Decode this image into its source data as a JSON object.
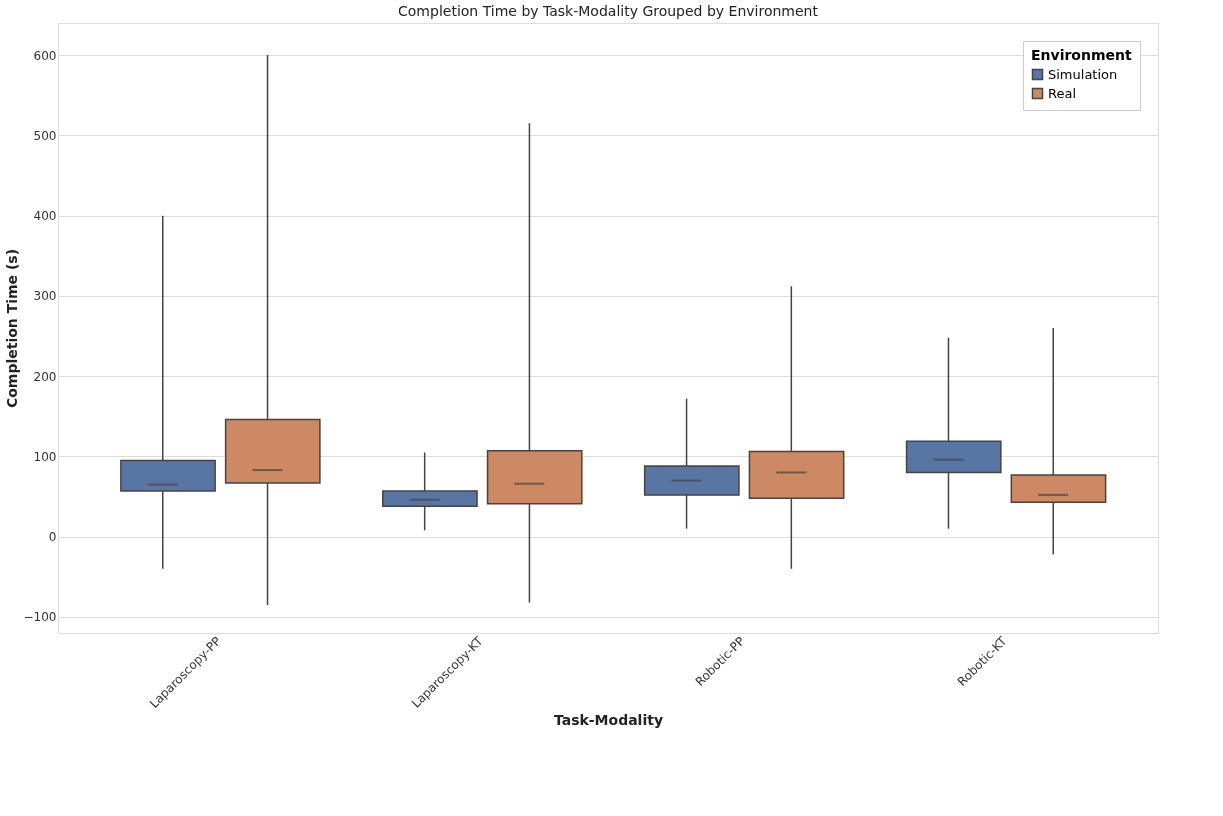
{
  "chart_data": {
    "type": "box",
    "title": "Completion Time by Task-Modality Grouped by Environment",
    "xlabel": "Task-Modality",
    "ylabel": "Completion Time (s)",
    "legend_title": "Environment",
    "categories": [
      "Laparoscopy-PP",
      "Laparoscopy-KT",
      "Robotic-PP",
      "Robotic-KT"
    ],
    "series": [
      {
        "name": "Simulation",
        "color": "#5875a4",
        "boxes": [
          {
            "low": -40,
            "q1": 57,
            "median": 65,
            "q3": 95,
            "high": 400
          },
          {
            "low": 8,
            "q1": 38,
            "median": 46,
            "q3": 57,
            "high": 105
          },
          {
            "low": 10,
            "q1": 52,
            "median": 70,
            "q3": 88,
            "high": 172
          },
          {
            "low": 10,
            "q1": 80,
            "median": 96,
            "q3": 119,
            "high": 248
          }
        ]
      },
      {
        "name": "Real",
        "color": "#cc8963",
        "boxes": [
          {
            "low": -85,
            "q1": 67,
            "median": 83,
            "q3": 146,
            "high": 600
          },
          {
            "low": -82,
            "q1": 41,
            "median": 66,
            "q3": 107,
            "high": 515
          },
          {
            "low": -40,
            "q1": 48,
            "median": 80,
            "q3": 106,
            "high": 312
          },
          {
            "low": -22,
            "q1": 43,
            "median": 52,
            "q3": 77,
            "high": 260
          }
        ]
      }
    ],
    "ylim": [
      -120,
      640
    ],
    "yticks": [
      -100,
      0,
      100,
      200,
      300,
      400,
      500,
      600
    ],
    "grid": "y",
    "legend": "top right"
  }
}
